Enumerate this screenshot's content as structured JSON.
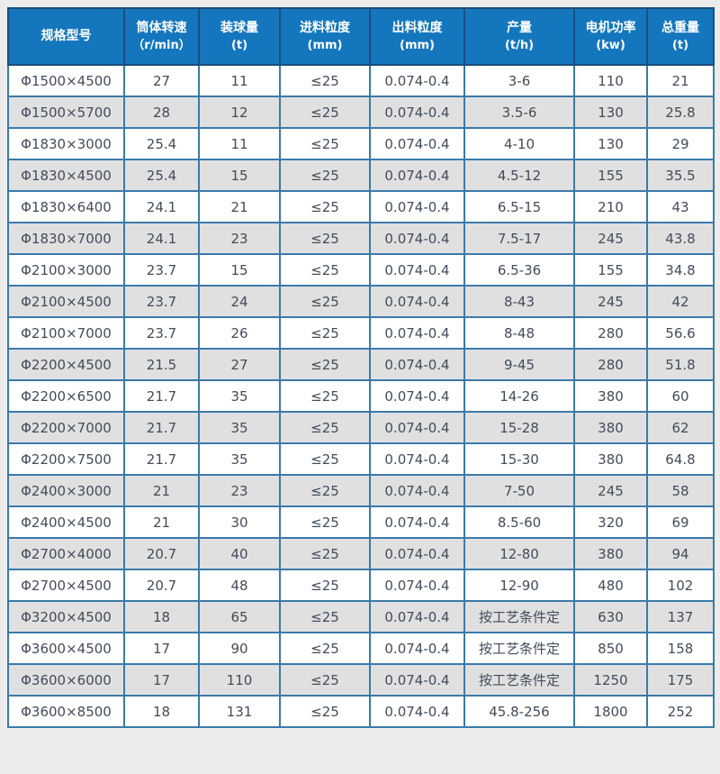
{
  "table": {
    "columns": [
      {
        "label": "规格型号",
        "sub": ""
      },
      {
        "label": "筒体转速",
        "sub": "（r/min）"
      },
      {
        "label": "装球量",
        "sub": "(t)"
      },
      {
        "label": "进料粒度",
        "sub": "(mm)"
      },
      {
        "label": "出料粒度",
        "sub": "(mm)"
      },
      {
        "label": "产量",
        "sub": "(t/h)"
      },
      {
        "label": "电机功率",
        "sub": "(kw)"
      },
      {
        "label": "总重量",
        "sub": "(t)"
      }
    ],
    "rows": [
      [
        "Φ1500×4500",
        "27",
        "11",
        "≤25",
        "0.074-0.4",
        "3-6",
        "110",
        "21"
      ],
      [
        "Φ1500×5700",
        "28",
        "12",
        "≤25",
        "0.074-0.4",
        "3.5-6",
        "130",
        "25.8"
      ],
      [
        "Φ1830×3000",
        "25.4",
        "11",
        "≤25",
        "0.074-0.4",
        "4-10",
        "130",
        "29"
      ],
      [
        "Φ1830×4500",
        "25.4",
        "15",
        "≤25",
        "0.074-0.4",
        "4.5-12",
        "155",
        "35.5"
      ],
      [
        "Φ1830×6400",
        "24.1",
        "21",
        "≤25",
        "0.074-0.4",
        "6.5-15",
        "210",
        "43"
      ],
      [
        "Φ1830×7000",
        "24.1",
        "23",
        "≤25",
        "0.074-0.4",
        "7.5-17",
        "245",
        "43.8"
      ],
      [
        "Φ2100×3000",
        "23.7",
        "15",
        "≤25",
        "0.074-0.4",
        "6.5-36",
        "155",
        "34.8"
      ],
      [
        "Φ2100×4500",
        "23.7",
        "24",
        "≤25",
        "0.074-0.4",
        "8-43",
        "245",
        "42"
      ],
      [
        "Φ2100×7000",
        "23.7",
        "26",
        "≤25",
        "0.074-0.4",
        "8-48",
        "280",
        "56.6"
      ],
      [
        "Φ2200×4500",
        "21.5",
        "27",
        "≤25",
        "0.074-0.4",
        "9-45",
        "280",
        "51.8"
      ],
      [
        "Φ2200×6500",
        "21.7",
        "35",
        "≤25",
        "0.074-0.4",
        "14-26",
        "380",
        "60"
      ],
      [
        "Φ2200×7000",
        "21.7",
        "35",
        "≤25",
        "0.074-0.4",
        "15-28",
        "380",
        "62"
      ],
      [
        "Φ2200×7500",
        "21.7",
        "35",
        "≤25",
        "0.074-0.4",
        "15-30",
        "380",
        "64.8"
      ],
      [
        "Φ2400×3000",
        "21",
        "23",
        "≤25",
        "0.074-0.4",
        "7-50",
        "245",
        "58"
      ],
      [
        "Φ2400×4500",
        "21",
        "30",
        "≤25",
        "0.074-0.4",
        "8.5-60",
        "320",
        "69"
      ],
      [
        "Φ2700×4000",
        "20.7",
        "40",
        "≤25",
        "0.074-0.4",
        "12-80",
        "380",
        "94"
      ],
      [
        "Φ2700×4500",
        "20.7",
        "48",
        "≤25",
        "0.074-0.4",
        "12-90",
        "480",
        "102"
      ],
      [
        "Φ3200×4500",
        "18",
        "65",
        "≤25",
        "0.074-0.4",
        "按工艺条件定",
        "630",
        "137"
      ],
      [
        "Φ3600×4500",
        "17",
        "90",
        "≤25",
        "0.074-0.4",
        "按工艺条件定",
        "850",
        "158"
      ],
      [
        "Φ3600×6000",
        "17",
        "110",
        "≤25",
        "0.074-0.4",
        "按工艺条件定",
        "1250",
        "175"
      ],
      [
        "Φ3600×8500",
        "18",
        "131",
        "≤25",
        "0.074-0.4",
        "45.8-256",
        "1800",
        "252"
      ]
    ]
  },
  "colors": {
    "page_bg": "#ececec",
    "header_bg": "#1477be",
    "header_text": "#ffffff",
    "header_border": "#1b4d7d",
    "body_border": "#3a7aab",
    "alt_row_bg": "#e0e0e0",
    "row_bg": "#ffffff",
    "body_text": "#434c59"
  }
}
